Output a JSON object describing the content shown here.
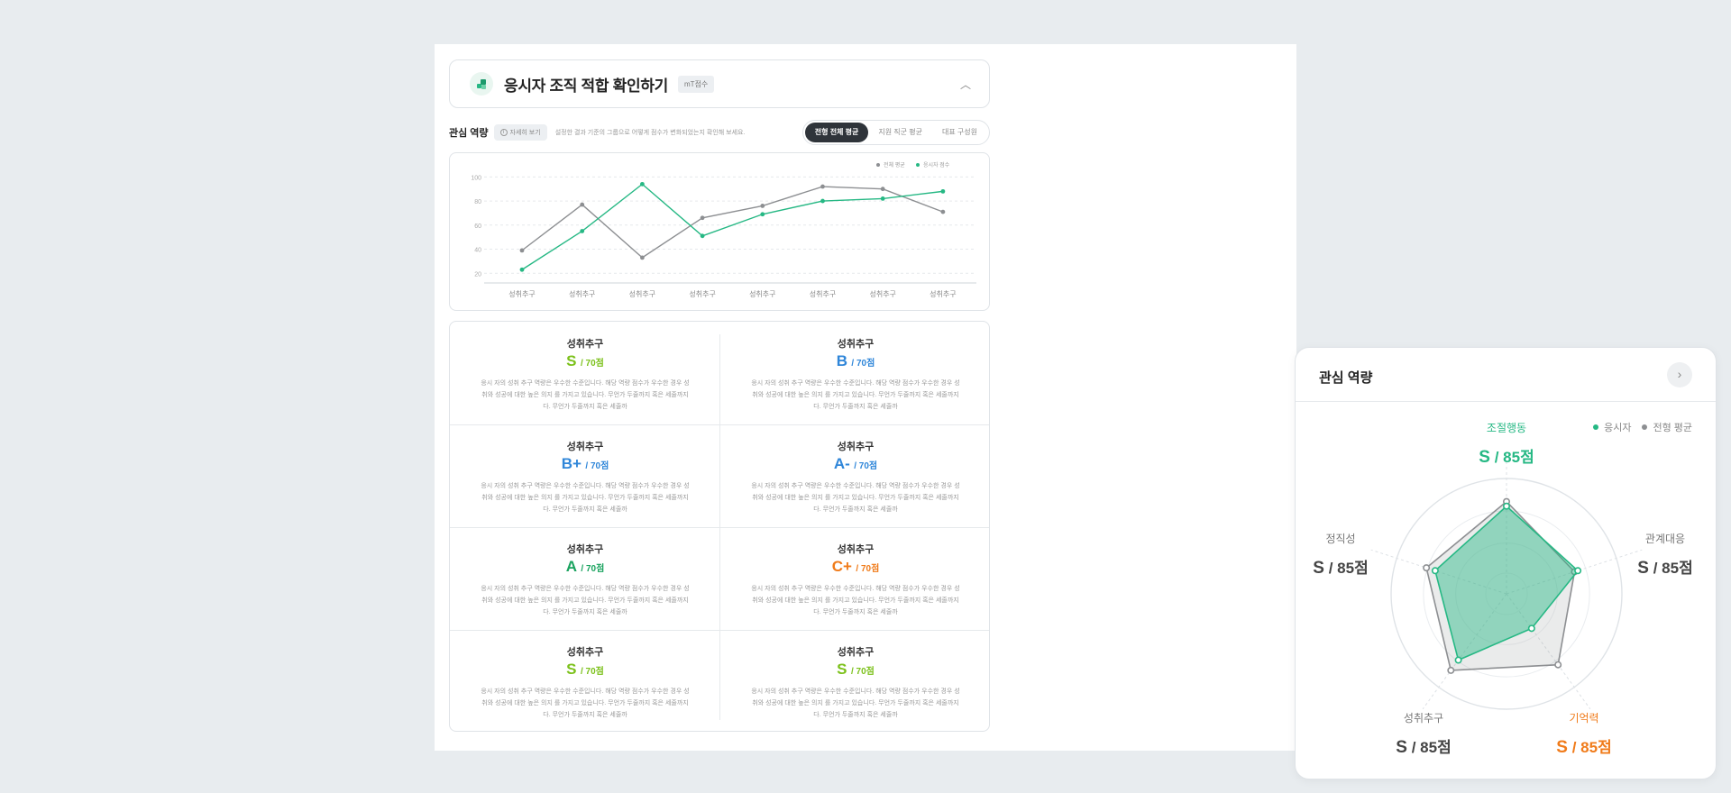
{
  "header": {
    "title": "응시자 조직 적합 확인하기",
    "badge": "mT점수"
  },
  "toolbar": {
    "label": "관심 역량",
    "detail_button": "자세히 보기",
    "description": "설정한 결과 기준의 그룹으로 어떻게 점수가 변화되었는지 확인해 보세요.",
    "segments": [
      "전형 전체 평균",
      "지원 직군 평균",
      "대표 구성원"
    ],
    "active_segment": 0
  },
  "colors": {
    "applicant": "#26b884",
    "average": "#8d8f92",
    "grade_green": "#7cc11b",
    "grade_blue": "#2f86d9",
    "grade_mint": "#1aa35f",
    "grade_orange": "#f07b1a"
  },
  "chart_data": {
    "type": "line",
    "categories": [
      "성취추구",
      "성취추구",
      "성취추구",
      "성취추구",
      "성취추구",
      "성취추구",
      "성취추구",
      "성취추구"
    ],
    "yticks": [
      100,
      80,
      60,
      40,
      20
    ],
    "ylim": [
      0,
      100
    ],
    "legend": [
      "전체 평균",
      "응시자 점수"
    ],
    "series": [
      {
        "name": "전체 평균",
        "color": "#8d8f92",
        "values": [
          39,
          77,
          33,
          66,
          76,
          92,
          90,
          71
        ]
      },
      {
        "name": "응시자 점수",
        "color": "#26b884",
        "values": [
          23,
          55,
          94,
          51,
          69,
          80,
          82,
          88
        ]
      }
    ]
  },
  "cards": [
    {
      "title": "성취추구",
      "grade": "S",
      "score": "/ 70점",
      "color": "#7cc11b",
      "desc": [
        "응시 자의 성취 추구 역량은 우수한 수준입니다. 해당 역량 점수가 우수한 경우 성",
        "취와 성공에 대한 높은 의지 를 가지고 있습니다. 무언가 두줄까지 혹은 세줄까지",
        "다. 무언가 두줄까지 혹은 세줄까"
      ]
    },
    {
      "title": "성취추구",
      "grade": "B",
      "score": "/ 70점",
      "color": "#2f86d9",
      "desc": [
        "응시 자의 성취 추구 역량은 우수한 수준입니다. 해당 역량 점수가 우수한 경우 성",
        "취와 성공에 대한 높은 의지 를 가지고 있습니다. 무언가 두줄까지 혹은 세줄까지",
        "다. 무언가 두줄까지 혹은 세줄까"
      ]
    },
    {
      "title": "성취추구",
      "grade": "B+",
      "score": "/ 70점",
      "color": "#2f86d9",
      "desc": [
        "응시 자의 성취 추구 역량은 우수한 수준입니다. 해당 역량 점수가 우수한 경우 성",
        "취와 성공에 대한 높은 의지 를 가지고 있습니다. 무언가 두줄까지 혹은 세줄까지",
        "다. 무언가 두줄까지 혹은 세줄까"
      ]
    },
    {
      "title": "성취추구",
      "grade": "A-",
      "score": "/ 70점",
      "color": "#2f86d9",
      "desc": [
        "응시 자의 성취 추구 역량은 우수한 수준입니다. 해당 역량 점수가 우수한 경우 성",
        "취와 성공에 대한 높은 의지 를 가지고 있습니다. 무언가 두줄까지 혹은 세줄까지",
        "다. 무언가 두줄까지 혹은 세줄까"
      ]
    },
    {
      "title": "성취추구",
      "grade": "A",
      "score": "/ 70점",
      "color": "#1aa35f",
      "desc": [
        "응시 자의 성취 추구 역량은 우수한 수준입니다. 해당 역량 점수가 우수한 경우 성",
        "취와 성공에 대한 높은 의지 를 가지고 있습니다. 무언가 두줄까지 혹은 세줄까지",
        "다. 무언가 두줄까지 혹은 세줄까"
      ]
    },
    {
      "title": "성취추구",
      "grade": "C+",
      "score": "/ 70점",
      "color": "#f07b1a",
      "desc": [
        "응시 자의 성취 추구 역량은 우수한 수준입니다. 해당 역량 점수가 우수한 경우 성",
        "취와 성공에 대한 높은 의지 를 가지고 있습니다. 무언가 두줄까지 혹은 세줄까지",
        "다. 무언가 두줄까지 혹은 세줄까"
      ]
    },
    {
      "title": "성취추구",
      "grade": "S",
      "score": "/ 70점",
      "color": "#7cc11b",
      "desc": [
        "응시 자의 성취 추구 역량은 우수한 수준입니다. 해당 역량 점수가 우수한 경우 성",
        "취와 성공에 대한 높은 의지 를 가지고 있습니다. 무언가 두줄까지 혹은 세줄까지",
        "다. 무언가 두줄까지 혹은 세줄까"
      ]
    },
    {
      "title": "성취추구",
      "grade": "S",
      "score": "/ 70점",
      "color": "#7cc11b",
      "desc": [
        "응시 자의 성취 추구 역량은 우수한 수준입니다. 해당 역량 점수가 우수한 경우 성",
        "취와 성공에 대한 높은 의지 를 가지고 있습니다. 무언가 두줄까지 혹은 세줄까지",
        "다. 무언가 두줄까지 혹은 세줄까"
      ]
    }
  ],
  "radar": {
    "title": "관심 역량",
    "legend": [
      "응시자",
      "전형 평균"
    ],
    "axes": [
      {
        "name": "조절행동",
        "grade": "S",
        "score": "/ 85점",
        "label_color": "#26b884",
        "grade_color": "#26b884"
      },
      {
        "name": "관계대응",
        "grade": "S",
        "score": "/ 85점",
        "label_color": "#777777",
        "grade_color": "#444444"
      },
      {
        "name": "기억력",
        "grade": "S",
        "score": "/ 85점",
        "label_color": "#f07b1a",
        "grade_color": "#f07b1a"
      },
      {
        "name": "성취추구",
        "grade": "S",
        "score": "/ 85점",
        "label_color": "#777777",
        "grade_color": "#444444"
      },
      {
        "name": "정직성",
        "grade": "S",
        "score": "/ 85점",
        "label_color": "#777777",
        "grade_color": "#444444"
      }
    ],
    "chart_data": {
      "type": "radar",
      "categories": [
        "조절행동",
        "관계대응",
        "기억력",
        "성취추구",
        "정직성"
      ],
      "max": 100,
      "series": [
        {
          "name": "응시자",
          "color": "#26b884",
          "values": [
            76,
            65,
            37,
            71,
            65
          ]
        },
        {
          "name": "전형 평균",
          "color": "#8d8f92",
          "values": [
            80,
            62,
            76,
            82,
            73
          ]
        }
      ]
    }
  }
}
